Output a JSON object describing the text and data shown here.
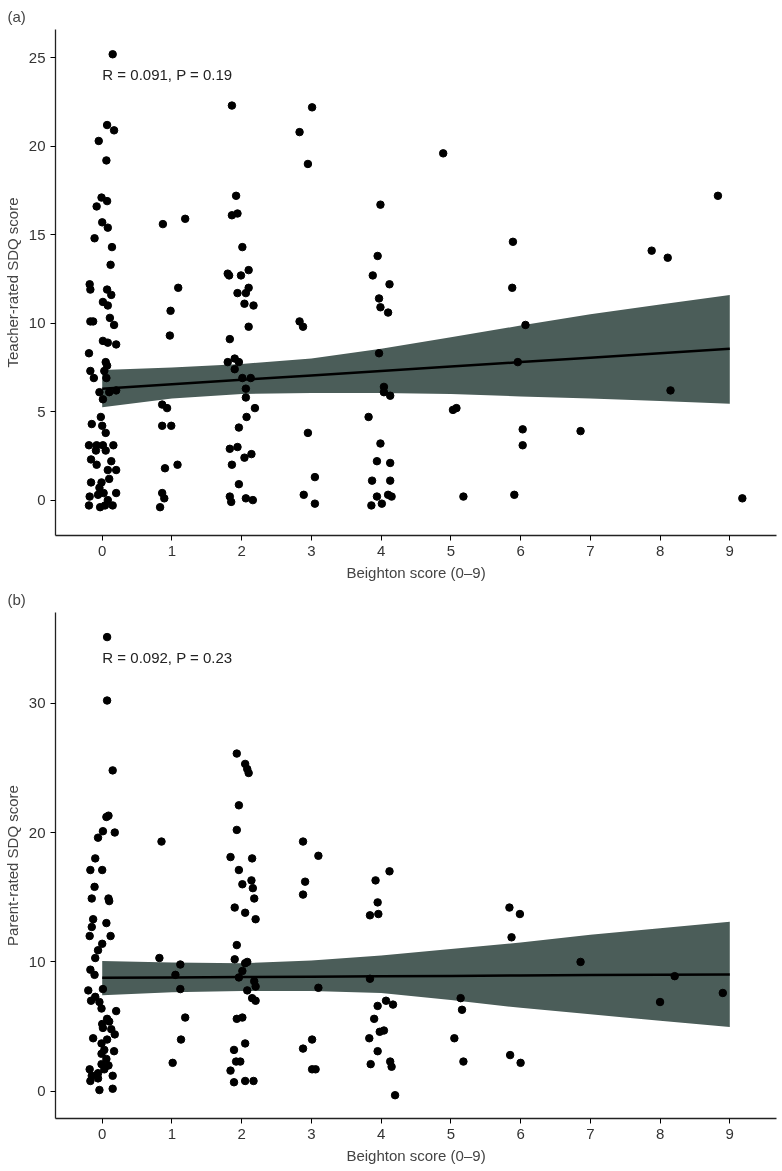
{
  "chart_data": [
    {
      "type": "scatter",
      "title": "(a)",
      "xlabel": "Beighton score (0–9)",
      "ylabel": "Teacher-rated SDQ score",
      "annotations": [
        "R = 0.091, P = 0.19"
      ],
      "xlim": [
        -0.67,
        9.67
      ],
      "ylim": [
        -2.0,
        26.6
      ],
      "xticks": [
        0,
        1,
        2,
        3,
        4,
        5,
        6,
        7,
        8,
        9
      ],
      "yticks": [
        0,
        5,
        10,
        15,
        20,
        25
      ],
      "grid": false,
      "series": [
        {
          "marker": "circle",
          "color": "#000000",
          "x": [
            0.15,
            -0.05,
            0.07,
            0.17,
            0.06,
            -0.01,
            -0.08,
            0.07,
            0,
            0.08,
            -0.11,
            0.14,
            0.12,
            -0.18,
            -0.17,
            0.07,
            0.13,
            0.01,
            0.08,
            -0.17,
            -0.13,
            0.11,
            0.17,
            0.01,
            0.08,
            0.2,
            -0.19,
            0.05,
            0.07,
            -0.17,
            -0.12,
            0.03,
            0.06,
            -0.04,
            0.01,
            0.1,
            0.2,
            -0.02,
            -0.15,
            0,
            0.05,
            -0.19,
            -0.08,
            0.01,
            0.16,
            -0.09,
            0.05,
            -0.16,
            -0.08,
            0.13,
            0.2,
            0.08,
            -0.16,
            -0.01,
            0.1,
            -0.04,
            -0.18,
            -0.06,
            0.02,
            0.2,
            -0.19,
            -0.03,
            0.04,
            0.15,
            0.08,
            0.87,
            1.19,
            1.09,
            0.98,
            0.97,
            0.86,
            0.93,
            0.86,
            0.99,
            0.9,
            1.08,
            0.86,
            0.89,
            0.83,
            1.86,
            1.92,
            1.86,
            1.94,
            2.01,
            1.8,
            1.82,
            1.99,
            2.1,
            1.94,
            2.06,
            2.1,
            2.04,
            2.17,
            2.1,
            1.83,
            1.8,
            1.9,
            1.96,
            1.9,
            2.01,
            2.13,
            2.06,
            2.06,
            2.19,
            2.07,
            1.96,
            1.83,
            1.94,
            2.04,
            2.14,
            1.86,
            1.96,
            1.83,
            1.85,
            2.06,
            2.16,
            3.01,
            2.83,
            2.95,
            2.83,
            2.88,
            2.95,
            3.05,
            2.89,
            3.05,
            3.99,
            3.95,
            3.88,
            4.12,
            3.97,
            3.99,
            4.1,
            3.97,
            4.04,
            4.04,
            4.13,
            3.82,
            3.99,
            3.94,
            4.13,
            3.87,
            4.13,
            3.94,
            4.1,
            4.15,
            3.86,
            4.01,
            4.89,
            5.03,
            5.08,
            5.18,
            5.89,
            5.88,
            6.07,
            5.96,
            6.03,
            6.03,
            5.91,
            6.86,
            7.88,
            8.11,
            8.15,
            8.83,
            9.18
          ],
          "values": [
            25.2,
            20.3,
            21.2,
            20.9,
            19.2,
            17.1,
            16.6,
            16.9,
            15.7,
            15.4,
            14.8,
            14.3,
            13.3,
            12.2,
            11.9,
            11.9,
            11.6,
            11.2,
            11.0,
            10.1,
            10.1,
            10.3,
            9.9,
            9.0,
            8.9,
            8.8,
            8.3,
            7.8,
            7.6,
            7.3,
            6.9,
            7.3,
            6.9,
            6.1,
            5.7,
            6.1,
            6.2,
            4.7,
            4.3,
            4.2,
            3.8,
            3.1,
            3.1,
            3.1,
            3.1,
            2.8,
            2.8,
            2.3,
            2.0,
            2.2,
            1.7,
            1.7,
            1.0,
            1.0,
            1.2,
            0.7,
            0.2,
            0.3,
            0.4,
            0.4,
            -0.3,
            -0.4,
            -0.3,
            -0.3,
            0.0,
            15.6,
            15.9,
            12.0,
            10.7,
            9.3,
            5.4,
            5.2,
            4.2,
            4.2,
            1.8,
            2.0,
            0.4,
            0.1,
            -0.4,
            22.3,
            17.2,
            16.1,
            16.2,
            14.3,
            12.8,
            12.7,
            12.7,
            13.0,
            11.7,
            11.7,
            12.0,
            11.1,
            11.0,
            9.8,
            9.1,
            7.8,
            8.0,
            7.8,
            7.4,
            6.9,
            6.9,
            6.3,
            5.8,
            5.2,
            4.7,
            4.1,
            2.9,
            3.0,
            2.4,
            2.6,
            2.0,
            0.9,
            0.2,
            -0.1,
            0.1,
            0.0,
            22.2,
            20.8,
            19.0,
            10.1,
            9.8,
            3.8,
            1.3,
            0.3,
            -0.2,
            16.7,
            13.8,
            12.7,
            12.2,
            11.4,
            10.9,
            10.6,
            8.3,
            6.4,
            6.1,
            5.9,
            4.7,
            3.2,
            2.2,
            2.1,
            1.1,
            1.1,
            0.2,
            0.3,
            0.2,
            -0.3,
            -0.2,
            19.6,
            5.1,
            5.2,
            0.2,
            14.6,
            12.0,
            9.9,
            7.8,
            4.0,
            3.1,
            0.3,
            3.9,
            14.1,
            13.7,
            6.2,
            17.2,
            0.1
          ]
        },
        {
          "type": "line",
          "marker": "none",
          "color": "#000000",
          "x": [
            0,
            1,
            2,
            3,
            4,
            5,
            6,
            7,
            8,
            9
          ],
          "values": [
            6.3,
            6.55,
            6.8,
            7.05,
            7.3,
            7.55,
            7.8,
            8.05,
            8.3,
            8.55
          ],
          "lower": [
            5.25,
            5.75,
            6.0,
            6.05,
            6.05,
            6.0,
            5.86,
            5.75,
            5.6,
            5.45
          ],
          "upper": [
            7.36,
            7.5,
            7.7,
            8.0,
            8.56,
            9.2,
            9.87,
            10.5,
            11.05,
            11.6
          ]
        }
      ]
    },
    {
      "type": "scatter",
      "title": "(b)",
      "xlabel": "Beighton score (0–9)",
      "ylabel": "Parent-rated SDQ score",
      "annotations": [
        "R = 0.092, P = 0.23"
      ],
      "xlim": [
        -0.67,
        9.67
      ],
      "ylim": [
        -2.1,
        37.0
      ],
      "xticks": [
        0,
        1,
        2,
        3,
        4,
        5,
        6,
        7,
        8,
        9
      ],
      "yticks": [
        0,
        10,
        20,
        30
      ],
      "grid": false,
      "series": [
        {
          "marker": "circle",
          "color": "#000000",
          "x": [
            0.07,
            0.07,
            0.15,
            0.06,
            0.09,
            0.01,
            0.18,
            -0.06,
            -0.1,
            0,
            -0.17,
            -0.11,
            -0.15,
            0.09,
            0.1,
            -0.13,
            0.06,
            -0.15,
            -0.18,
            0.12,
            0,
            -0.06,
            -0.1,
            -0.17,
            -0.11,
            0.01,
            -0.2,
            -0.1,
            -0.04,
            -0.16,
            -0.01,
            0.2,
            0.07,
            0.1,
            0,
            0.13,
            0.01,
            0.18,
            -0.13,
            0.07,
            -0.01,
            0.03,
            0.17,
            -0.01,
            0.06,
            -0.01,
            0.09,
            0.03,
            -0.18,
            0.15,
            -0.15,
            -0.06,
            -0.17,
            -0.04,
            0.15,
            -0.06,
            0.85,
            0.82,
            1.12,
            1.05,
            1.12,
            1.19,
            1.13,
            1.01,
            1.93,
            2.05,
            2.08,
            2.1,
            1.96,
            1.93,
            1.84,
            2.15,
            1.96,
            2.14,
            2.01,
            2.16,
            2.18,
            1.9,
            2.05,
            2.2,
            1.93,
            1.9,
            2.08,
            2.05,
            2.01,
            1.96,
            2.18,
            2.2,
            2.08,
            2.15,
            2.2,
            1.93,
            2.01,
            2.05,
            1.89,
            1.92,
            1.98,
            1.84,
            1.89,
            2.05,
            2.17,
            2.88,
            3.1,
            2.91,
            2.88,
            3.1,
            3.01,
            2.88,
            3.01,
            3.06,
            4.12,
            3.92,
            3.95,
            3.84,
            3.96,
            3.84,
            4.07,
            4.17,
            3.95,
            3.9,
            3.98,
            4.04,
            3.83,
            3.95,
            3.85,
            4.13,
            4.15,
            4.2,
            5.14,
            5.16,
            5.05,
            5.18,
            5.84,
            5.99,
            5.87,
            5.85,
            6.0,
            6.86,
            8.21,
            8.0,
            8.9
          ],
          "values": [
            35.1,
            30.2,
            24.8,
            21.2,
            21.3,
            20.1,
            20.0,
            19.6,
            18.0,
            17.1,
            17.1,
            15.8,
            14.9,
            14.9,
            14.7,
            13.3,
            13.0,
            12.7,
            12.0,
            12.0,
            11.4,
            10.9,
            10.3,
            9.4,
            9.0,
            7.9,
            7.8,
            7.3,
            6.9,
            7.0,
            6.4,
            6.2,
            5.6,
            5.4,
            5.2,
            4.8,
            4.9,
            4.4,
            4.1,
            4.0,
            3.7,
            3.2,
            3.1,
            2.9,
            2.5,
            2.1,
            2.0,
            1.7,
            1.7,
            1.2,
            1.2,
            1.0,
            0.8,
            0.1,
            0.2,
            1.4,
            19.3,
            10.3,
            9.8,
            9.0,
            7.9,
            5.7,
            4.0,
            2.2,
            26.1,
            25.3,
            24.9,
            24.6,
            22.1,
            20.2,
            18.1,
            18.0,
            17.1,
            16.3,
            16.0,
            15.7,
            14.9,
            14.2,
            13.8,
            13.3,
            11.3,
            10.2,
            10.0,
            9.9,
            9.3,
            8.8,
            8.5,
            8.1,
            7.8,
            7.2,
            7.0,
            5.6,
            5.7,
            3.7,
            3.2,
            2.3,
            2.3,
            1.6,
            0.7,
            0.8,
            0.8,
            19.3,
            18.2,
            16.2,
            15.2,
            8.0,
            4.0,
            3.3,
            1.7,
            1.7,
            17.0,
            16.3,
            14.6,
            13.6,
            13.7,
            8.7,
            7.0,
            6.7,
            6.6,
            5.6,
            4.6,
            4.7,
            4.1,
            3.1,
            2.1,
            2.3,
            1.9,
            -0.3,
            7.2,
            6.3,
            4.1,
            2.3,
            14.2,
            13.7,
            11.9,
            2.8,
            2.2,
            10.0,
            8.9,
            6.9,
            7.6
          ]
        },
        {
          "type": "line",
          "marker": "none",
          "color": "#000000",
          "x": [
            0,
            1,
            2,
            3,
            4,
            5,
            6,
            7,
            8,
            9
          ],
          "values": [
            8.77,
            8.8,
            8.83,
            8.86,
            8.89,
            8.92,
            8.95,
            8.98,
            9.0,
            9.03
          ],
          "lower": [
            7.43,
            7.65,
            7.75,
            7.75,
            7.6,
            7.05,
            6.45,
            5.95,
            5.45,
            4.97
          ],
          "upper": [
            10.07,
            9.95,
            9.9,
            10.1,
            10.5,
            11.0,
            11.5,
            12.1,
            12.6,
            13.1
          ]
        }
      ]
    }
  ]
}
